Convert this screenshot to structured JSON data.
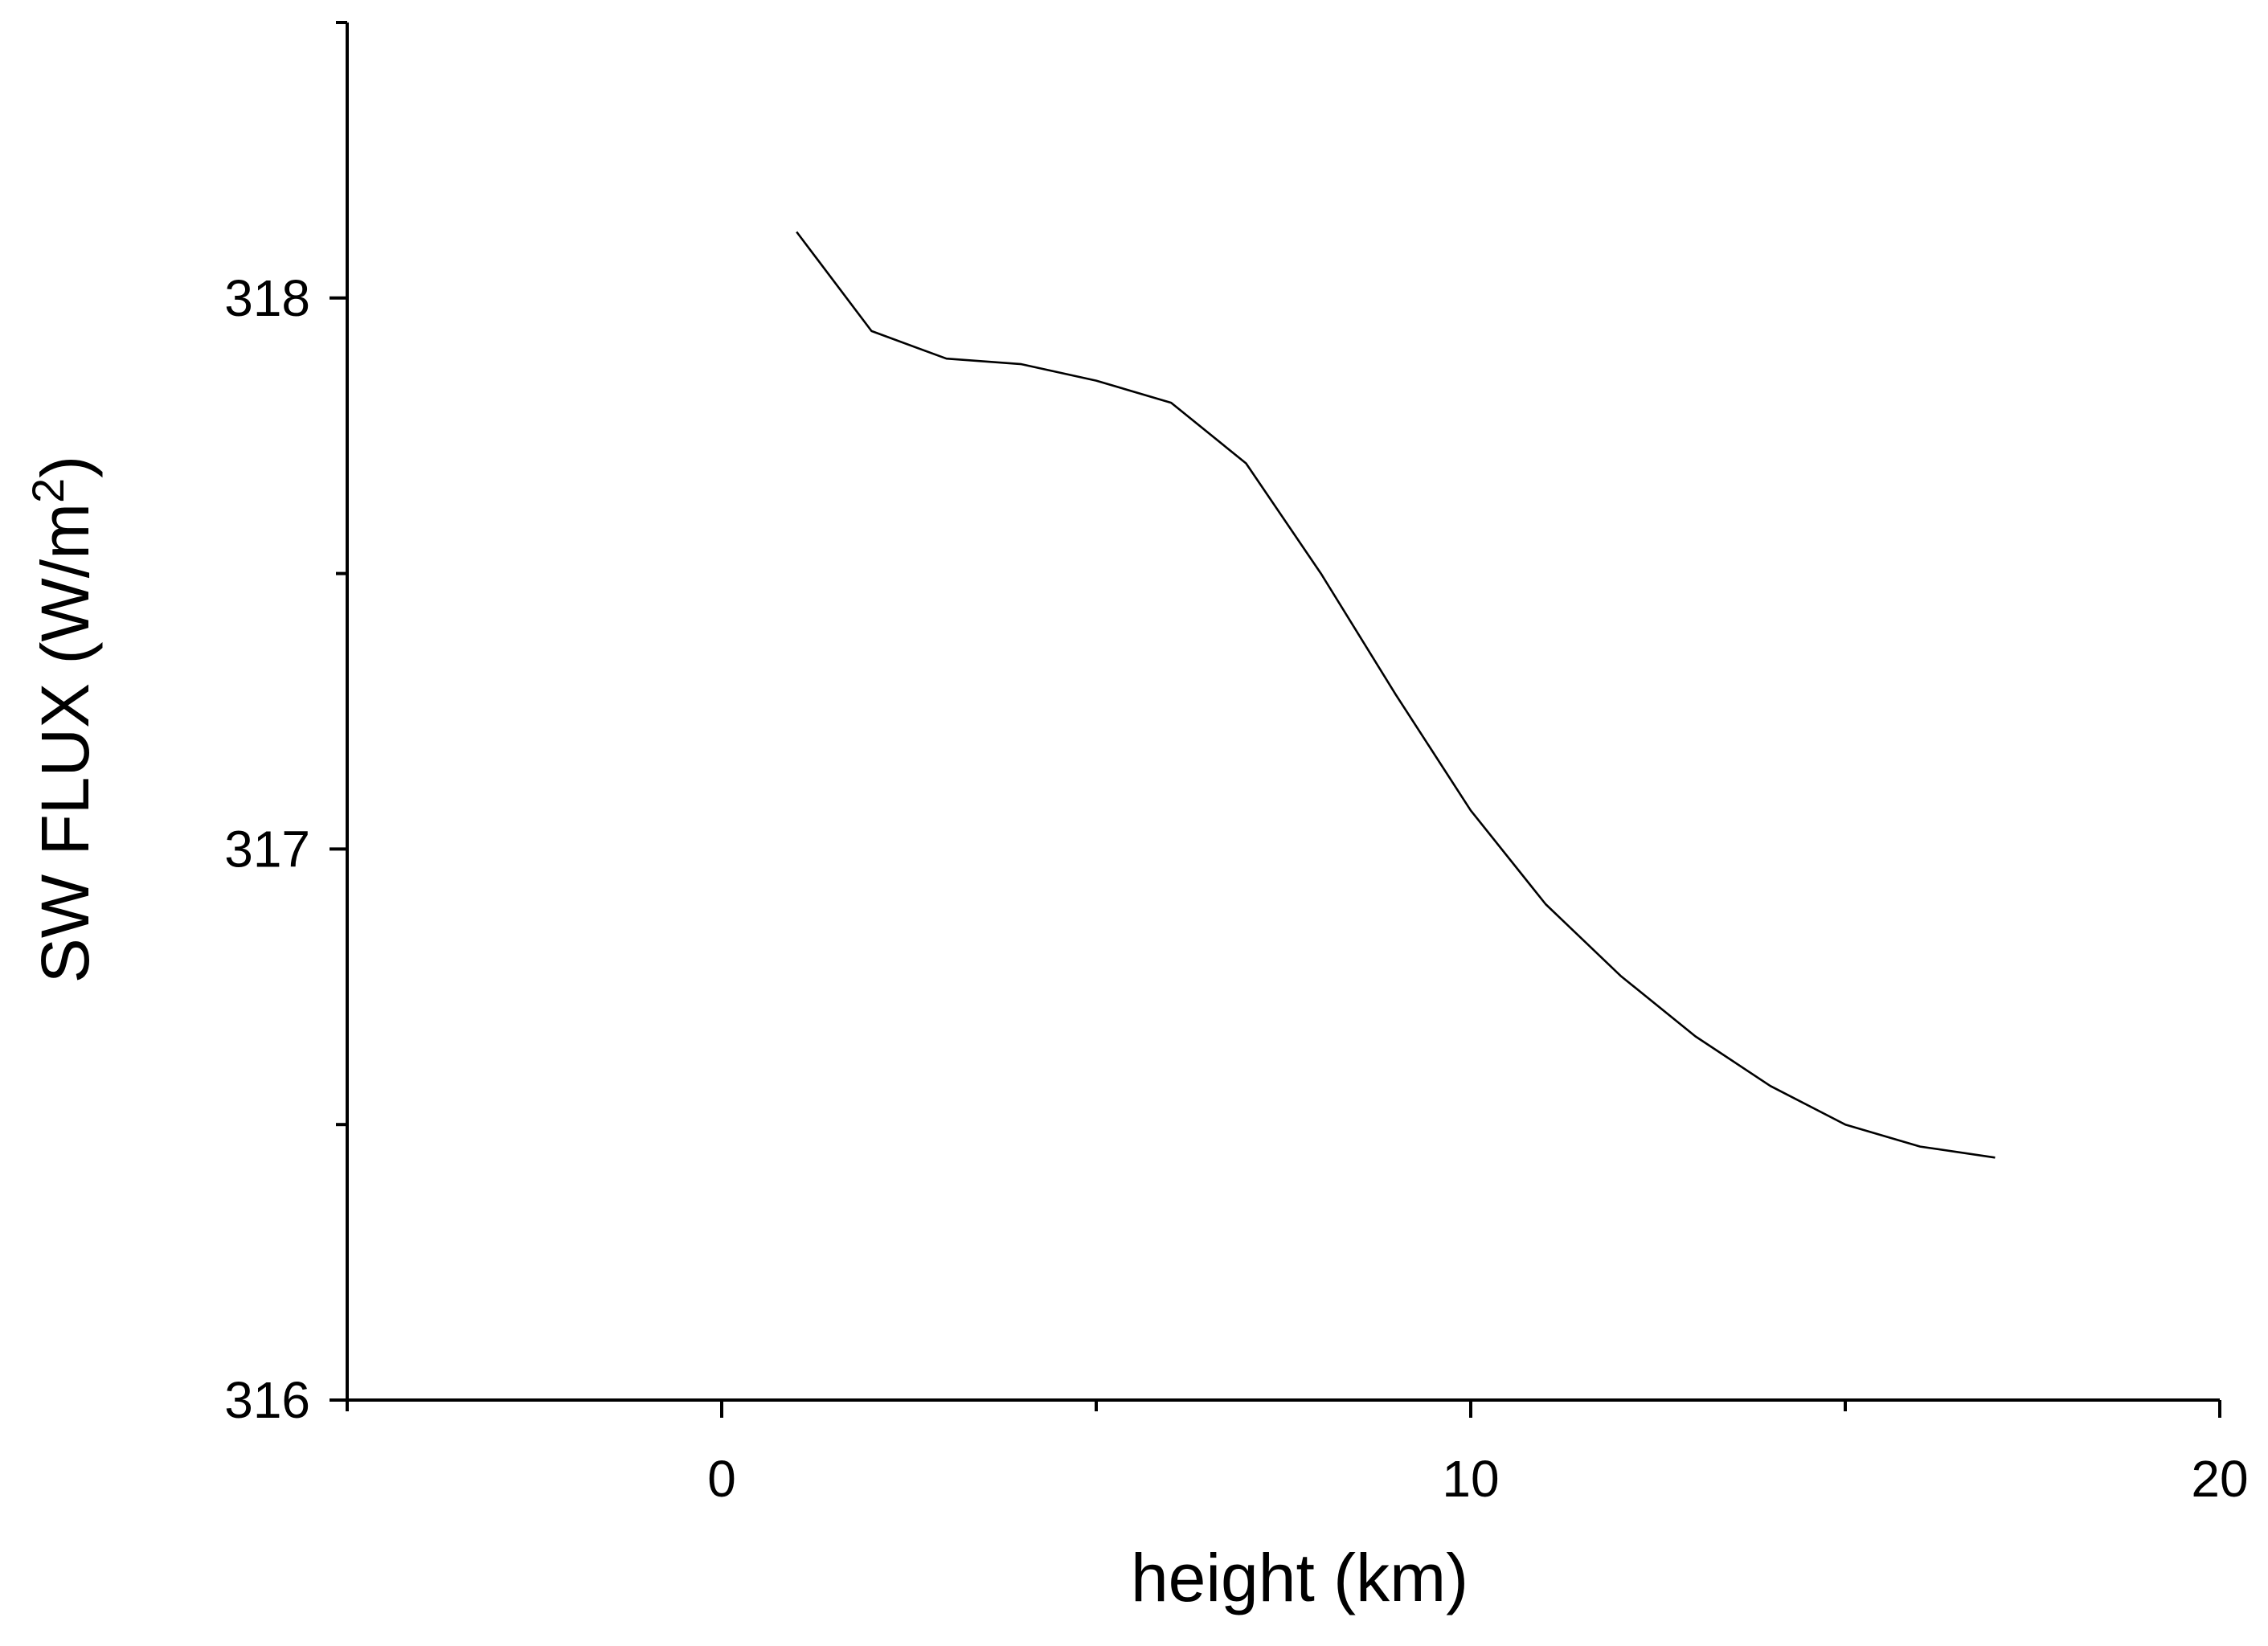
{
  "chart_data": {
    "type": "line",
    "xlabel": "height (km)",
    "ylabel_parts": {
      "base": "SW FLUX (W/m",
      "superscript": "2",
      "close": ")"
    },
    "xlim": [
      -5,
      20
    ],
    "ylim": [
      316,
      318.5
    ],
    "x_ticks": [
      {
        "value": 0,
        "label": "0"
      },
      {
        "value": 10,
        "label": "10"
      },
      {
        "value": 20,
        "label": "20"
      }
    ],
    "x_minor_ticks": [
      -5,
      5,
      15
    ],
    "y_ticks": [
      {
        "value": 316,
        "label": "316"
      },
      {
        "value": 317,
        "label": "317"
      },
      {
        "value": 318,
        "label": "318"
      }
    ],
    "y_minor_ticks": [
      316.5,
      317.5,
      318.5
    ],
    "grid": false,
    "series": [
      {
        "color": "#000000",
        "x": [
          1,
          2,
          3,
          4,
          5,
          6,
          7,
          8,
          9,
          10,
          11,
          12,
          13,
          14,
          15,
          16,
          17
        ],
        "y": [
          318.12,
          317.94,
          317.89,
          317.88,
          317.85,
          317.81,
          317.7,
          317.5,
          317.28,
          317.07,
          316.9,
          316.77,
          316.66,
          316.57,
          316.5,
          316.46,
          316.44
        ]
      }
    ]
  }
}
